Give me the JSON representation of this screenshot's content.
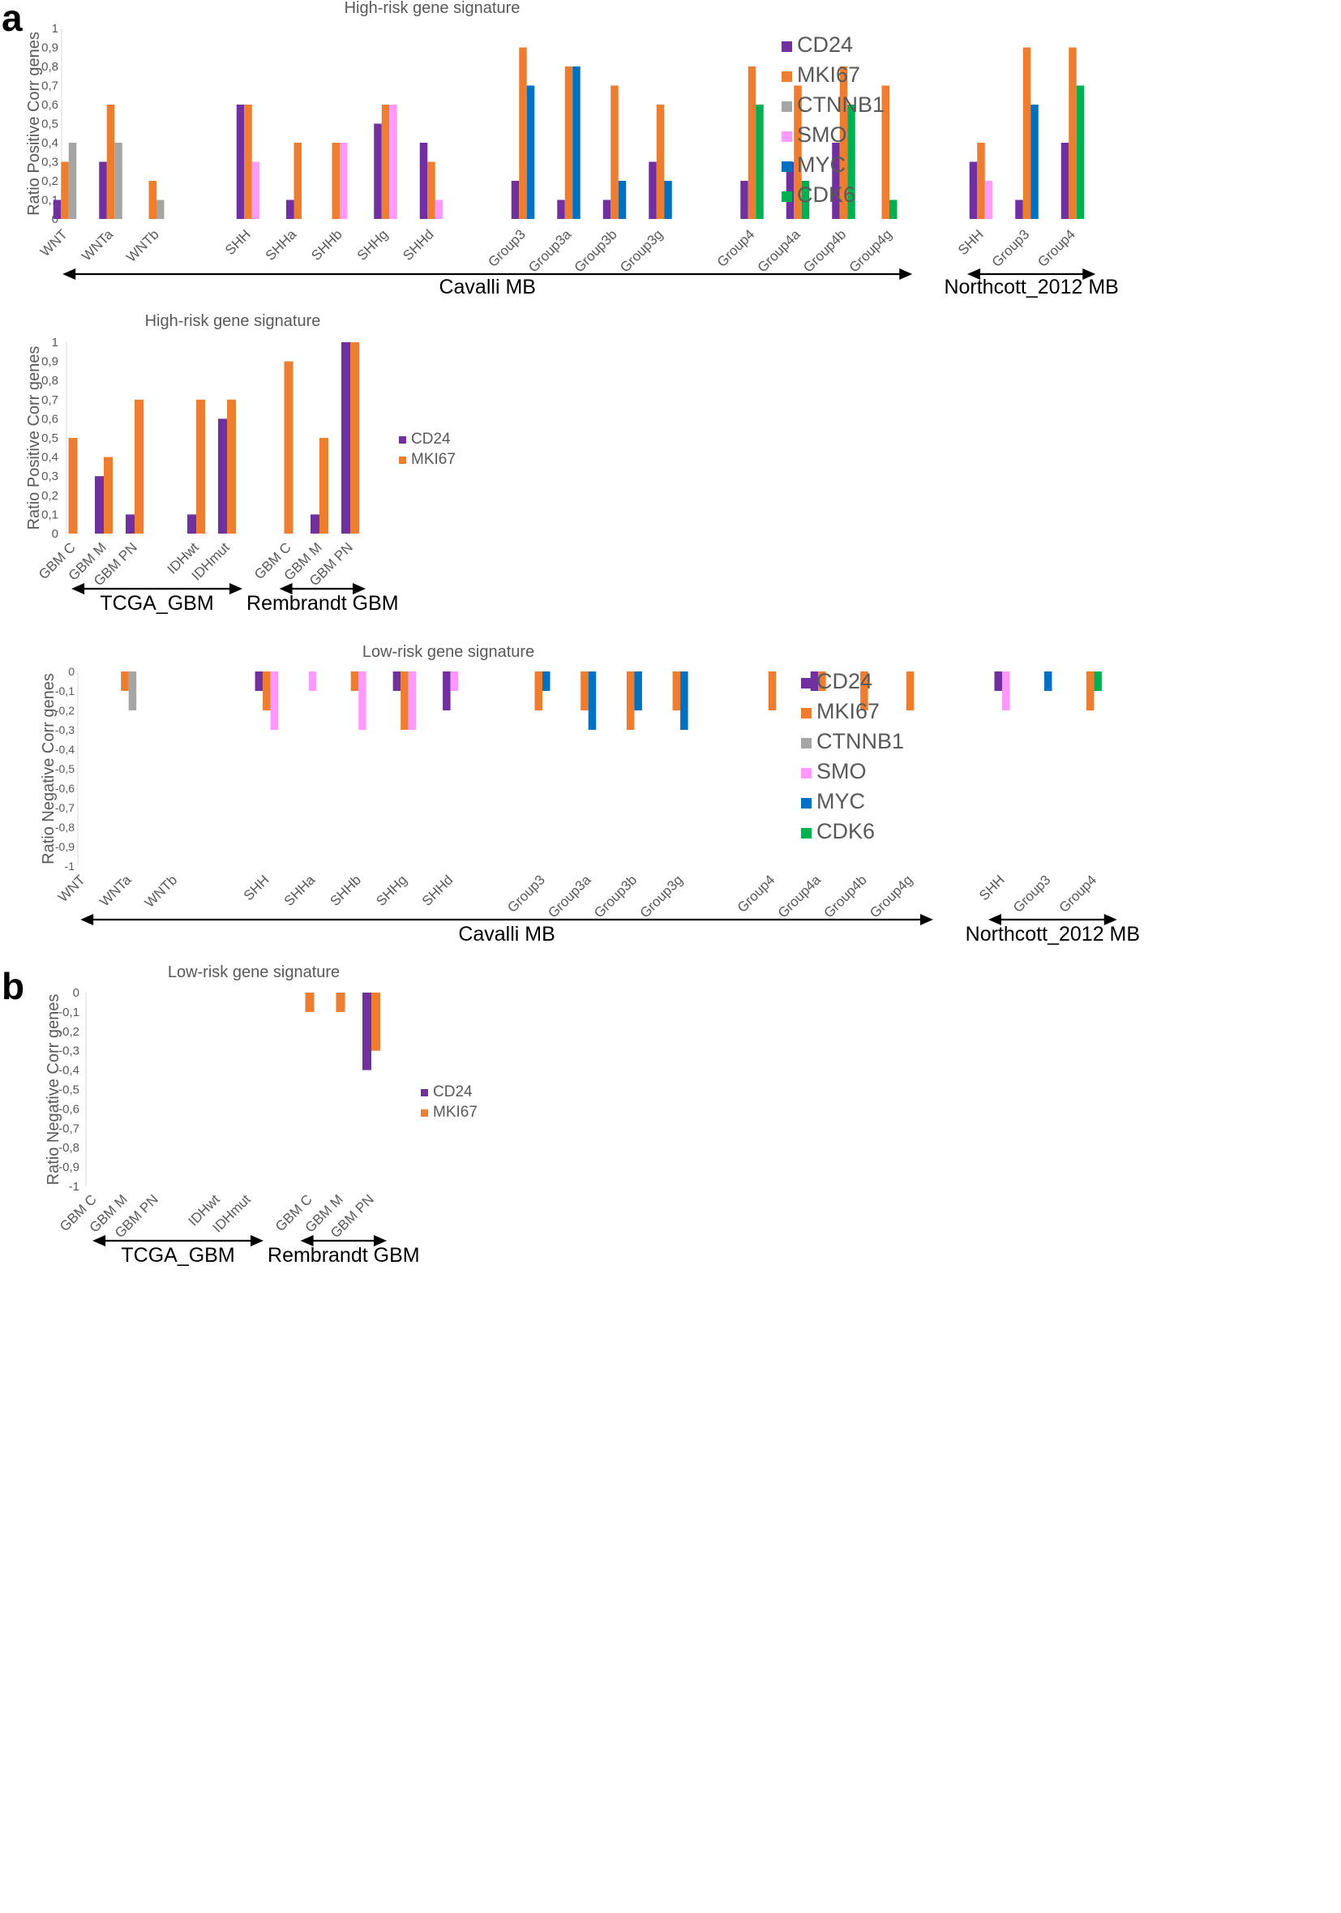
{
  "panels": {
    "a": "a",
    "b": "b"
  },
  "colors": {
    "CD24": "#7030a0",
    "MKI67": "#ed7d31",
    "CTNNB1": "#a5a5a5",
    "SMO": "#ff99ff",
    "MYC": "#0070c0",
    "CDK6": "#00b050"
  },
  "chart_data": [
    {
      "id": "a1",
      "type": "bar",
      "title": "High-risk gene signature",
      "ylabel": "Ratio Positive Corr genes",
      "ylim": [
        0,
        1
      ],
      "yticks": [
        "0",
        "0,1",
        "0,2",
        "0,3",
        "0,4",
        "0,5",
        "0,6",
        "0,7",
        "0,8",
        "0,9",
        "1"
      ],
      "categories": [
        "WNT",
        "WNTa",
        "WNTb",
        "",
        "SHH",
        "SHHa",
        "SHHb",
        "SHHg",
        "SHHd",
        "",
        "Group3",
        "Group3a",
        "Group3b",
        "Group3g",
        "",
        "Group4",
        "Group4a",
        "Group4b",
        "Group4g",
        "",
        "SHH",
        "Group3",
        "Group4"
      ],
      "series": [
        {
          "name": "CD24",
          "values": [
            0.1,
            0.3,
            0,
            null,
            0.6,
            0.1,
            0,
            0.5,
            0.4,
            null,
            0.2,
            0.1,
            0.1,
            0.3,
            null,
            0.2,
            0.3,
            0.4,
            0,
            null,
            0.3,
            0.1,
            0.4
          ]
        },
        {
          "name": "MKI67",
          "values": [
            0.3,
            0.6,
            0.2,
            null,
            0.6,
            0.4,
            0.4,
            0.6,
            0.3,
            null,
            0.9,
            0.8,
            0.7,
            0.6,
            null,
            0.8,
            0.7,
            0.8,
            0.7,
            null,
            0.4,
            0.9,
            0.9
          ]
        },
        {
          "name": "CTNNB1",
          "values": [
            0.4,
            0.4,
            0.1,
            null,
            0,
            0,
            0,
            0,
            0,
            null,
            0,
            0,
            0,
            0,
            null,
            0,
            0,
            0,
            0,
            null,
            0,
            0,
            0
          ]
        },
        {
          "name": "SMO",
          "values": [
            0,
            0,
            0,
            null,
            0.3,
            0,
            0.4,
            0.6,
            0.1,
            null,
            0,
            0,
            0,
            0,
            null,
            0,
            0,
            0,
            0,
            null,
            0.2,
            0,
            0
          ]
        },
        {
          "name": "MYC",
          "values": [
            0,
            0,
            0,
            null,
            0,
            0,
            0,
            0,
            0,
            null,
            0.7,
            0.8,
            0.2,
            0.2,
            null,
            0,
            0,
            0,
            0,
            null,
            0,
            0.6,
            0
          ]
        },
        {
          "name": "CDK6",
          "values": [
            0,
            0,
            0,
            null,
            0,
            0,
            0,
            0,
            0,
            null,
            0,
            0,
            0,
            0,
            null,
            0.6,
            0.2,
            0.6,
            0.1,
            null,
            0,
            0,
            0.7
          ]
        }
      ],
      "legend": [
        "CD24",
        "MKI67",
        "CTNNB1",
        "SMO",
        "MYC",
        "CDK6"
      ],
      "groups": [
        {
          "label": "Cavalli MB",
          "from": 0,
          "to": 18
        },
        {
          "label": "Northcott_2012 MB",
          "from": 20,
          "to": 22
        }
      ]
    },
    {
      "id": "a2",
      "type": "bar",
      "title": "High-risk gene signature",
      "ylabel": "Ratio Positive Corr genes",
      "ylim": [
        0,
        1
      ],
      "yticks": [
        "0",
        "0,1",
        "0,2",
        "0,3",
        "0,4",
        "0,5",
        "0,6",
        "0,7",
        "0,8",
        "0,9",
        "1"
      ],
      "categories": [
        "GBM C",
        "GBM M",
        "GBM PN",
        "",
        "IDHwt",
        "IDHmut",
        "",
        "GBM C",
        "GBM M",
        "GBM PN"
      ],
      "series": [
        {
          "name": "CD24",
          "values": [
            0,
            0.3,
            0.1,
            null,
            0.1,
            0.6,
            null,
            0,
            0.1,
            1
          ]
        },
        {
          "name": "MKI67",
          "values": [
            0.5,
            0.4,
            0.7,
            null,
            0.7,
            0.7,
            null,
            0.9,
            0.5,
            1
          ]
        }
      ],
      "legend": [
        "CD24",
        "MKI67"
      ],
      "groups": [
        {
          "label": "TCGA_GBM",
          "from": 0,
          "to": 5
        },
        {
          "label": "Rembrandt GBM",
          "from": 7,
          "to": 9
        }
      ]
    },
    {
      "id": "b1",
      "type": "bar",
      "title": "Low-risk gene signature",
      "ylabel": "Ratio Negative Corr genes",
      "ylim": [
        -1,
        0
      ],
      "yticks": [
        "-1",
        "-0,9",
        "-0,8",
        "-0,7",
        "-0,6",
        "-0,5",
        "-0,4",
        "-0,3",
        "-0,2",
        "-0,1",
        "0"
      ],
      "categories": [
        "WNT",
        "WNTa",
        "WNTb",
        "",
        "SHH",
        "SHHa",
        "SHHb",
        "SHHg",
        "SHHd",
        "",
        "Group3",
        "Group3a",
        "Group3b",
        "Group3g",
        "",
        "Group4",
        "Group4a",
        "Group4b",
        "Group4g",
        "",
        "SHH",
        "Group3",
        "Group4"
      ],
      "series": [
        {
          "name": "CD24",
          "values": [
            0,
            0,
            0,
            null,
            -0.1,
            0,
            0,
            -0.1,
            -0.2,
            null,
            0,
            0,
            0,
            0,
            null,
            0,
            -0.1,
            0,
            0,
            null,
            -0.1,
            0,
            0
          ]
        },
        {
          "name": "MKI67",
          "values": [
            0,
            -0.1,
            0,
            null,
            -0.2,
            0,
            -0.1,
            -0.3,
            0,
            null,
            -0.2,
            -0.2,
            -0.3,
            -0.2,
            null,
            -0.2,
            -0.1,
            -0.2,
            -0.2,
            null,
            0,
            0,
            -0.2
          ]
        },
        {
          "name": "CTNNB1",
          "values": [
            0,
            -0.2,
            0,
            null,
            0,
            0,
            0,
            0,
            0,
            null,
            0,
            0,
            0,
            0,
            null,
            0,
            0,
            0,
            0,
            null,
            0,
            0,
            0
          ]
        },
        {
          "name": "SMO",
          "values": [
            0,
            0,
            0,
            null,
            -0.3,
            -0.1,
            -0.3,
            -0.3,
            -0.1,
            null,
            0,
            0,
            0,
            0,
            null,
            0,
            0,
            0,
            0,
            null,
            -0.2,
            0,
            0
          ]
        },
        {
          "name": "MYC",
          "values": [
            0,
            0,
            0,
            null,
            0,
            0,
            0,
            0,
            0,
            null,
            -0.1,
            -0.3,
            -0.2,
            -0.3,
            null,
            0,
            0,
            0,
            0,
            null,
            0,
            -0.1,
            0
          ]
        },
        {
          "name": "CDK6",
          "values": [
            0,
            0,
            0,
            null,
            0,
            0,
            0,
            0,
            0,
            null,
            0,
            0,
            0,
            0,
            null,
            0,
            0,
            0,
            0,
            null,
            0,
            0,
            -0.1
          ]
        }
      ],
      "legend": [
        "CD24",
        "MKI67",
        "CTNNB1",
        "SMO",
        "MYC",
        "CDK6"
      ],
      "groups": [
        {
          "label": "Cavalli MB",
          "from": 0,
          "to": 18
        },
        {
          "label": "Northcott_2012 MB",
          "from": 20,
          "to": 22
        }
      ]
    },
    {
      "id": "b2",
      "type": "bar",
      "title": "Low-risk gene signature",
      "ylabel": "Ratio Negative Corr genes",
      "ylim": [
        -1,
        0
      ],
      "yticks": [
        "-1",
        "-0,9",
        "-0,8",
        "-0,7",
        "-0,6",
        "-0,5",
        "-0,4",
        "-0,3",
        "-0,2",
        "-0,1",
        "0"
      ],
      "categories": [
        "GBM C",
        "GBM M",
        "GBM PN",
        "",
        "IDHwt",
        "IDHmut",
        "",
        "GBM C",
        "GBM M",
        "GBM PN"
      ],
      "series": [
        {
          "name": "CD24",
          "values": [
            0,
            0,
            0,
            null,
            0,
            0,
            null,
            0,
            0,
            -0.4
          ]
        },
        {
          "name": "MKI67",
          "values": [
            0,
            0,
            0,
            null,
            0,
            0,
            null,
            -0.1,
            -0.1,
            -0.3
          ]
        }
      ],
      "legend": [
        "CD24",
        "MKI67"
      ],
      "groups": [
        {
          "label": "TCGA_GBM",
          "from": 0,
          "to": 5
        },
        {
          "label": "Rembrandt GBM",
          "from": 7,
          "to": 9
        }
      ]
    }
  ]
}
